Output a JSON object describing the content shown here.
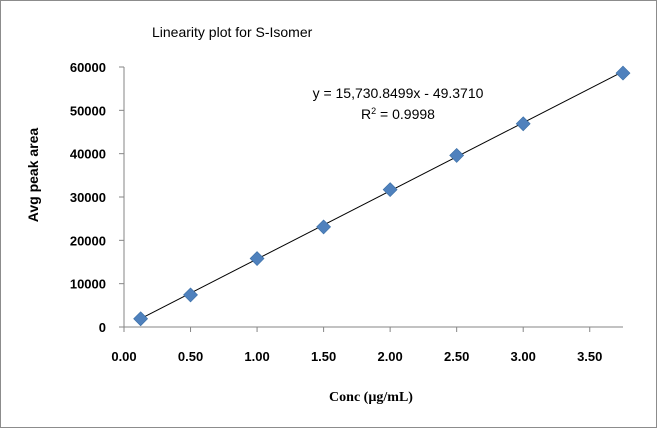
{
  "chart_data": {
    "type": "scatter",
    "title": "Linearity plot for  S-Isomer",
    "xlabel": "Conc (µg/mL)",
    "ylabel": "Avg peak area",
    "xlim": [
      0.0,
      3.75
    ],
    "ylim": [
      0,
      60000
    ],
    "x_ticks": [
      "0.00",
      "0.50",
      "1.00",
      "1.50",
      "2.00",
      "2.50",
      "3.00",
      "3.50"
    ],
    "x_tick_values": [
      0.0,
      0.5,
      1.0,
      1.5,
      2.0,
      2.5,
      3.0,
      3.5
    ],
    "y_ticks": [
      "0",
      "10000",
      "20000",
      "30000",
      "40000",
      "50000",
      "60000"
    ],
    "y_tick_values": [
      0,
      10000,
      20000,
      30000,
      40000,
      50000,
      60000
    ],
    "grid": false,
    "marker_color": "#4F81BD",
    "line_color": "#000000",
    "series": [
      {
        "x": [
          0.125,
          0.5,
          1.0,
          1.5,
          2.0,
          2.5,
          3.0,
          3.75
        ],
        "y": [
          1900,
          7400,
          15800,
          23100,
          31700,
          39600,
          46900,
          58600
        ]
      }
    ],
    "trendline": {
      "slope": 15730.8499,
      "intercept": -49.371
    },
    "annotations": {
      "equation": "y = 15,730.8499x - 49.3710",
      "r2_prefix": "R",
      "r2_sup": "2",
      "r2_suffix": " = 0.9998"
    }
  }
}
